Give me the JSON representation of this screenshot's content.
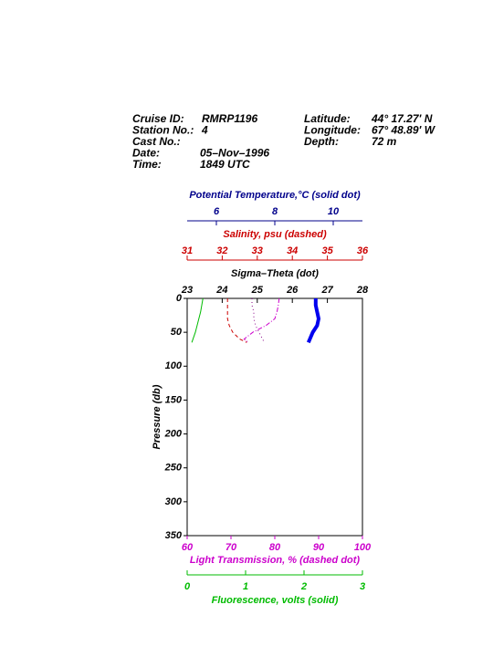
{
  "chart_data": {
    "type": "profile",
    "header": {
      "left": [
        {
          "label": "Cruise ID:",
          "value": "RMRP1196"
        },
        {
          "label": "Station No.:",
          "value": "4"
        },
        {
          "label": "Cast No.:"
        },
        {
          "label": "Date:",
          "value": "05–Nov–1996"
        },
        {
          "label": "Time:",
          "value": "1849 UTC"
        }
      ],
      "right": [
        {
          "label": "Latitude:",
          "value": "44° 17.27' N"
        },
        {
          "label": "Longitude:",
          "value": "67° 48.89' W"
        },
        {
          "label": "Depth:",
          "value": "72 m"
        }
      ]
    },
    "ylabel": "Pressure (db)",
    "ylim": [
      0,
      350
    ],
    "y_inverted": true,
    "yticks": [
      0,
      50,
      100,
      150,
      200,
      250,
      300,
      350
    ],
    "x_axes": [
      {
        "label": "Potential Temperature,°C (solid dot)",
        "xlim": [
          5,
          11
        ],
        "xticks": [
          6,
          8,
          10
        ],
        "color": "#00008b"
      },
      {
        "label": "Salinity, psu  (dashed)",
        "xlim": [
          31,
          36
        ],
        "xticks": [
          31,
          32,
          33,
          34,
          35,
          36
        ],
        "color": "#cc0000"
      },
      {
        "label": "Sigma–Theta (dot)",
        "xlim": [
          23,
          28
        ],
        "xticks": [
          23,
          24,
          25,
          26,
          27,
          28
        ],
        "color": "#000000"
      },
      {
        "label": "Light Transmission, % (dashed dot)",
        "xlim": [
          60,
          100
        ],
        "xticks": [
          60,
          70,
          80,
          90,
          100
        ],
        "color": "#cc00cc"
      },
      {
        "label": "Fluorescence, volts (solid)",
        "xlim": [
          0,
          3
        ],
        "xticks": [
          0,
          1,
          2,
          3
        ],
        "color": "#00bb00"
      }
    ],
    "y": [
      0,
      10,
      20,
      30,
      40,
      50,
      60,
      65
    ],
    "series": [
      {
        "xaxis": 0,
        "color": "#0000ee",
        "style": "thick",
        "values": [
          9.4,
          9.4,
          9.45,
          9.5,
          9.45,
          9.3,
          9.2,
          9.15
        ]
      },
      {
        "xaxis": 1,
        "color": "#cc0000",
        "style": "dashed",
        "values": [
          32.15,
          32.15,
          32.15,
          32.15,
          32.2,
          32.3,
          32.5,
          32.7
        ]
      },
      {
        "xaxis": 2,
        "color": "#880088",
        "style": "dotted",
        "values": [
          24.85,
          24.85,
          24.9,
          24.9,
          24.95,
          25.05,
          25.15,
          25.2
        ]
      },
      {
        "xaxis": 3,
        "color": "#cc00cc",
        "style": "dashdot",
        "values": [
          81,
          80.8,
          80.5,
          80,
          78,
          75,
          73,
          74
        ]
      },
      {
        "xaxis": 4,
        "color": "#00bb00",
        "style": "solid",
        "values": [
          0.27,
          0.25,
          0.23,
          0.2,
          0.17,
          0.14,
          0.1,
          0.08
        ]
      }
    ]
  }
}
